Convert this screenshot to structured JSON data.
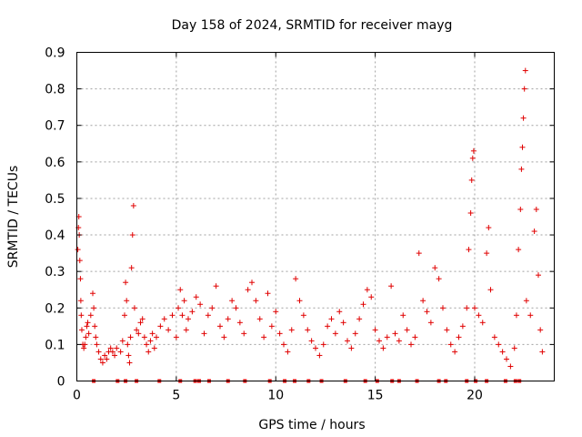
{
  "chart_data": {
    "type": "scatter",
    "title": "Day 158 of 2024, SRMTID for receiver mayg",
    "xlabel": "GPS time / hours",
    "ylabel": "SRMTID / TECUs",
    "xlim": [
      0,
      24
    ],
    "ylim": [
      0,
      0.9
    ],
    "x_ticks": [
      0,
      5,
      10,
      15,
      20
    ],
    "x_tick_labels": [
      "0",
      "5",
      "10",
      "15",
      "20"
    ],
    "y_ticks": [
      0,
      0.1,
      0.2,
      0.3,
      0.4,
      0.5,
      0.6,
      0.7,
      0.8,
      0.9
    ],
    "y_tick_labels": [
      "0",
      "0.1",
      "0.2",
      "0.3",
      "0.4",
      "0.5",
      "0.6",
      "0.7",
      "0.8",
      "0.9"
    ],
    "grid": true,
    "marker": "plus",
    "color": "#e00000",
    "series": [
      {
        "name": "SRMTID",
        "points": [
          [
            0.05,
            0.36
          ],
          [
            0.08,
            0.42
          ],
          [
            0.1,
            0.45
          ],
          [
            0.12,
            0.4
          ],
          [
            0.15,
            0.33
          ],
          [
            0.18,
            0.28
          ],
          [
            0.2,
            0.22
          ],
          [
            0.22,
            0.18
          ],
          [
            0.25,
            0.14
          ],
          [
            0.3,
            0.1
          ],
          [
            0.35,
            0.09
          ],
          [
            0.4,
            0.1
          ],
          [
            0.45,
            0.12
          ],
          [
            0.5,
            0.15
          ],
          [
            0.55,
            0.16
          ],
          [
            0.6,
            0.13
          ],
          [
            0.7,
            0.18
          ],
          [
            0.8,
            0.24
          ],
          [
            0.85,
            0.2
          ],
          [
            0.9,
            0.15
          ],
          [
            0.95,
            0.12
          ],
          [
            1.0,
            0.1
          ],
          [
            1.1,
            0.08
          ],
          [
            1.2,
            0.06
          ],
          [
            1.3,
            0.05
          ],
          [
            1.4,
            0.07
          ],
          [
            1.5,
            0.06
          ],
          [
            1.6,
            0.08
          ],
          [
            1.7,
            0.09
          ],
          [
            1.8,
            0.08
          ],
          [
            1.9,
            0.07
          ],
          [
            2.0,
            0.09
          ],
          [
            2.2,
            0.08
          ],
          [
            2.3,
            0.11
          ],
          [
            2.4,
            0.18
          ],
          [
            2.45,
            0.27
          ],
          [
            2.5,
            0.22
          ],
          [
            2.55,
            0.1
          ],
          [
            2.6,
            0.07
          ],
          [
            2.65,
            0.05
          ],
          [
            2.7,
            0.12
          ],
          [
            2.75,
            0.31
          ],
          [
            2.8,
            0.4
          ],
          [
            2.85,
            0.48
          ],
          [
            2.9,
            0.2
          ],
          [
            3.0,
            0.14
          ],
          [
            3.1,
            0.13
          ],
          [
            3.2,
            0.16
          ],
          [
            3.3,
            0.17
          ],
          [
            3.4,
            0.12
          ],
          [
            3.5,
            0.1
          ],
          [
            3.6,
            0.08
          ],
          [
            3.7,
            0.11
          ],
          [
            3.8,
            0.13
          ],
          [
            3.9,
            0.09
          ],
          [
            4.0,
            0.12
          ],
          [
            4.2,
            0.15
          ],
          [
            4.4,
            0.17
          ],
          [
            4.6,
            0.14
          ],
          [
            4.8,
            0.18
          ],
          [
            5.0,
            0.12
          ],
          [
            5.1,
            0.2
          ],
          [
            5.2,
            0.25
          ],
          [
            5.3,
            0.18
          ],
          [
            5.4,
            0.22
          ],
          [
            5.5,
            0.14
          ],
          [
            5.6,
            0.17
          ],
          [
            5.8,
            0.19
          ],
          [
            6.0,
            0.23
          ],
          [
            6.2,
            0.21
          ],
          [
            6.4,
            0.13
          ],
          [
            6.6,
            0.18
          ],
          [
            6.8,
            0.2
          ],
          [
            7.0,
            0.26
          ],
          [
            7.2,
            0.15
          ],
          [
            7.4,
            0.12
          ],
          [
            7.6,
            0.17
          ],
          [
            7.8,
            0.22
          ],
          [
            8.0,
            0.2
          ],
          [
            8.2,
            0.16
          ],
          [
            8.4,
            0.13
          ],
          [
            8.6,
            0.25
          ],
          [
            8.8,
            0.27
          ],
          [
            9.0,
            0.22
          ],
          [
            9.2,
            0.17
          ],
          [
            9.4,
            0.12
          ],
          [
            9.6,
            0.24
          ],
          [
            9.8,
            0.15
          ],
          [
            10.0,
            0.19
          ],
          [
            10.2,
            0.13
          ],
          [
            10.4,
            0.1
          ],
          [
            10.6,
            0.08
          ],
          [
            10.8,
            0.14
          ],
          [
            11.0,
            0.28
          ],
          [
            11.2,
            0.22
          ],
          [
            11.4,
            0.18
          ],
          [
            11.6,
            0.14
          ],
          [
            11.8,
            0.11
          ],
          [
            12.0,
            0.09
          ],
          [
            12.2,
            0.07
          ],
          [
            12.4,
            0.1
          ],
          [
            12.6,
            0.15
          ],
          [
            12.8,
            0.17
          ],
          [
            13.0,
            0.13
          ],
          [
            13.2,
            0.19
          ],
          [
            13.4,
            0.16
          ],
          [
            13.6,
            0.11
          ],
          [
            13.8,
            0.09
          ],
          [
            14.0,
            0.13
          ],
          [
            14.2,
            0.17
          ],
          [
            14.4,
            0.21
          ],
          [
            14.6,
            0.25
          ],
          [
            14.8,
            0.23
          ],
          [
            15.0,
            0.14
          ],
          [
            15.2,
            0.11
          ],
          [
            15.4,
            0.09
          ],
          [
            15.6,
            0.12
          ],
          [
            15.8,
            0.26
          ],
          [
            16.0,
            0.13
          ],
          [
            16.2,
            0.11
          ],
          [
            16.4,
            0.18
          ],
          [
            16.6,
            0.14
          ],
          [
            16.8,
            0.1
          ],
          [
            17.0,
            0.12
          ],
          [
            17.2,
            0.35
          ],
          [
            17.4,
            0.22
          ],
          [
            17.6,
            0.19
          ],
          [
            17.8,
            0.16
          ],
          [
            18.0,
            0.31
          ],
          [
            18.2,
            0.28
          ],
          [
            18.4,
            0.2
          ],
          [
            18.6,
            0.14
          ],
          [
            18.8,
            0.1
          ],
          [
            19.0,
            0.08
          ],
          [
            19.2,
            0.12
          ],
          [
            19.4,
            0.15
          ],
          [
            19.6,
            0.2
          ],
          [
            19.7,
            0.36
          ],
          [
            19.8,
            0.46
          ],
          [
            19.85,
            0.55
          ],
          [
            19.9,
            0.61
          ],
          [
            19.95,
            0.63
          ],
          [
            20.0,
            0.2
          ],
          [
            20.2,
            0.18
          ],
          [
            20.4,
            0.16
          ],
          [
            20.6,
            0.35
          ],
          [
            20.7,
            0.42
          ],
          [
            20.8,
            0.25
          ],
          [
            21.0,
            0.12
          ],
          [
            21.2,
            0.1
          ],
          [
            21.4,
            0.08
          ],
          [
            21.6,
            0.06
          ],
          [
            21.8,
            0.04
          ],
          [
            22.0,
            0.09
          ],
          [
            22.1,
            0.18
          ],
          [
            22.2,
            0.36
          ],
          [
            22.3,
            0.47
          ],
          [
            22.35,
            0.58
          ],
          [
            22.4,
            0.64
          ],
          [
            22.45,
            0.72
          ],
          [
            22.5,
            0.8
          ],
          [
            22.55,
            0.85
          ],
          [
            22.6,
            0.22
          ],
          [
            22.8,
            0.18
          ],
          [
            23.0,
            0.41
          ],
          [
            23.1,
            0.47
          ],
          [
            23.2,
            0.29
          ],
          [
            23.3,
            0.14
          ],
          [
            23.4,
            0.08
          ]
        ]
      }
    ],
    "gap_markers_x": [
      0.85,
      2.05,
      2.45,
      3.0,
      4.15,
      5.2,
      5.95,
      6.15,
      6.65,
      7.6,
      8.45,
      9.7,
      10.45,
      10.95,
      11.65,
      12.3,
      13.5,
      14.5,
      15.1,
      15.85,
      16.2,
      17.1,
      18.2,
      18.55,
      19.6,
      20.05,
      20.6,
      21.55,
      22.05,
      22.25
    ]
  }
}
